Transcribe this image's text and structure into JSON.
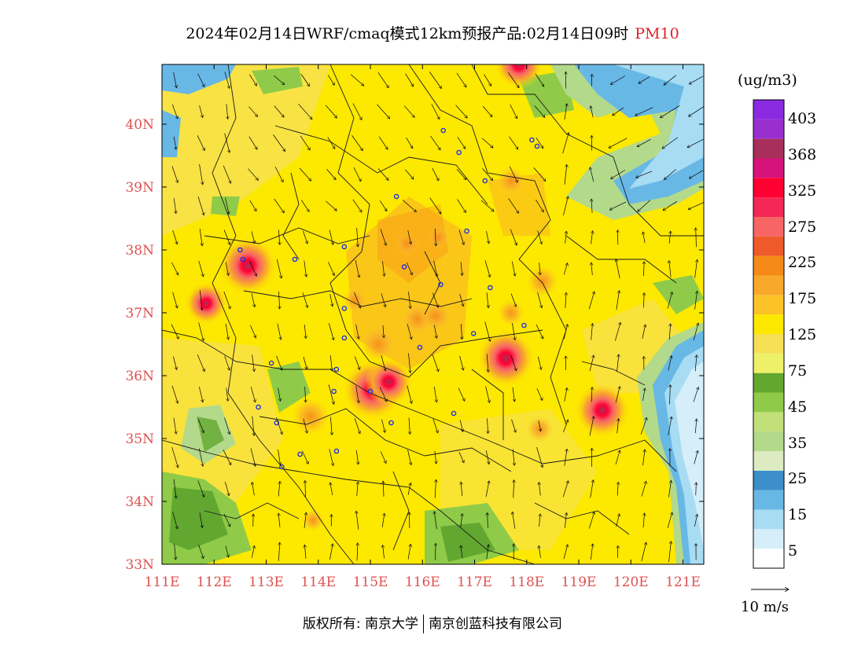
{
  "title": {
    "text": "2024年02月14日WRF/cmaq模式12km预报产品:02月14日09时",
    "pollutant": "PM10"
  },
  "map": {
    "lon_range": [
      111,
      121.4
    ],
    "lat_range": [
      33,
      40.95
    ],
    "lon_labels": [
      "111E",
      "112E",
      "113E",
      "114E",
      "115E",
      "116E",
      "117E",
      "118E",
      "119E",
      "120E",
      "121E"
    ],
    "lat_labels": [
      "33N",
      "34N",
      "35N",
      "36N",
      "37N",
      "38N",
      "39N",
      "40N"
    ]
  },
  "colorbar": {
    "unit": "(ug/m3)",
    "colors": [
      "#ffffff",
      "#d6eef9",
      "#a7dcf3",
      "#68b8e6",
      "#3c8fcb",
      "#dcebc1",
      "#b3d98a",
      "#c2e07a",
      "#8fcb48",
      "#62a830",
      "#eef06a",
      "#f6e055",
      "#fde800",
      "#fcc228",
      "#f8a92c",
      "#f58a18",
      "#ee5a2c",
      "#f76565",
      "#f42755",
      "#ff0033",
      "#d6137a",
      "#a72f5a",
      "#9a2fd0",
      "#8a2be2"
    ],
    "labels": [
      "403",
      "368",
      "325",
      "275",
      "225",
      "175",
      "125",
      "75",
      "45",
      "35",
      "25",
      "15",
      "5"
    ]
  },
  "hotspots": [
    {
      "lon": 115.05,
      "lat": 35.78,
      "v": 300
    },
    {
      "lon": 115.35,
      "lat": 35.9,
      "v": 260
    },
    {
      "lon": 117.6,
      "lat": 36.28,
      "v": 290
    },
    {
      "lon": 112.65,
      "lat": 37.75,
      "v": 290
    },
    {
      "lon": 111.85,
      "lat": 37.15,
      "v": 240
    },
    {
      "lon": 119.45,
      "lat": 35.45,
      "v": 280
    },
    {
      "lon": 117.85,
      "lat": 40.95,
      "v": 260
    },
    {
      "lon": 113.85,
      "lat": 35.35,
      "v": 220
    },
    {
      "lon": 115.15,
      "lat": 36.5,
      "v": 210
    },
    {
      "lon": 115.9,
      "lat": 36.9,
      "v": 200
    },
    {
      "lon": 116.25,
      "lat": 36.95,
      "v": 200
    },
    {
      "lon": 117.7,
      "lat": 39.1,
      "v": 190
    },
    {
      "lon": 118.3,
      "lat": 37.5,
      "v": 200
    },
    {
      "lon": 117.7,
      "lat": 37.0,
      "v": 185
    },
    {
      "lon": 118.25,
      "lat": 35.15,
      "v": 185
    },
    {
      "lon": 113.9,
      "lat": 33.7,
      "v": 170
    },
    {
      "lon": 115.7,
      "lat": 38.1,
      "v": 180
    },
    {
      "lon": 114.7,
      "lat": 37.2,
      "v": 175
    },
    {
      "lon": 116.3,
      "lat": 38.2,
      "v": 175
    }
  ],
  "cities": [
    {
      "lon": 116.4,
      "lat": 39.9
    },
    {
      "lon": 117.2,
      "lat": 39.1
    },
    {
      "lon": 114.5,
      "lat": 38.05
    },
    {
      "lon": 115.5,
      "lat": 38.85
    },
    {
      "lon": 116.7,
      "lat": 39.55
    },
    {
      "lon": 118.2,
      "lat": 39.65
    },
    {
      "lon": 112.55,
      "lat": 37.85
    },
    {
      "lon": 112.5,
      "lat": 38.0
    },
    {
      "lon": 113.55,
      "lat": 37.85
    },
    {
      "lon": 115.65,
      "lat": 37.73
    },
    {
      "lon": 116.35,
      "lat": 37.45
    },
    {
      "lon": 116.85,
      "lat": 38.3
    },
    {
      "lon": 114.5,
      "lat": 37.07
    },
    {
      "lon": 114.5,
      "lat": 36.6
    },
    {
      "lon": 115.95,
      "lat": 36.45
    },
    {
      "lon": 116.98,
      "lat": 36.67
    },
    {
      "lon": 117.95,
      "lat": 36.8
    },
    {
      "lon": 117.3,
      "lat": 37.4
    },
    {
      "lon": 113.1,
      "lat": 36.2
    },
    {
      "lon": 114.35,
      "lat": 36.1
    },
    {
      "lon": 114.3,
      "lat": 35.75
    },
    {
      "lon": 115.0,
      "lat": 35.75
    },
    {
      "lon": 115.4,
      "lat": 35.25
    },
    {
      "lon": 116.6,
      "lat": 35.4
    },
    {
      "lon": 112.85,
      "lat": 35.5
    },
    {
      "lon": 113.2,
      "lat": 35.25
    },
    {
      "lon": 113.65,
      "lat": 34.75
    },
    {
      "lon": 114.35,
      "lat": 34.8
    },
    {
      "lon": 113.3,
      "lat": 34.55
    },
    {
      "lon": 118.1,
      "lat": 39.75
    }
  ],
  "wind_ref": {
    "label": "10 m/s"
  },
  "footer": {
    "left": "版权所有: 南京大学",
    "right": "南京创蓝科技有限公司"
  }
}
